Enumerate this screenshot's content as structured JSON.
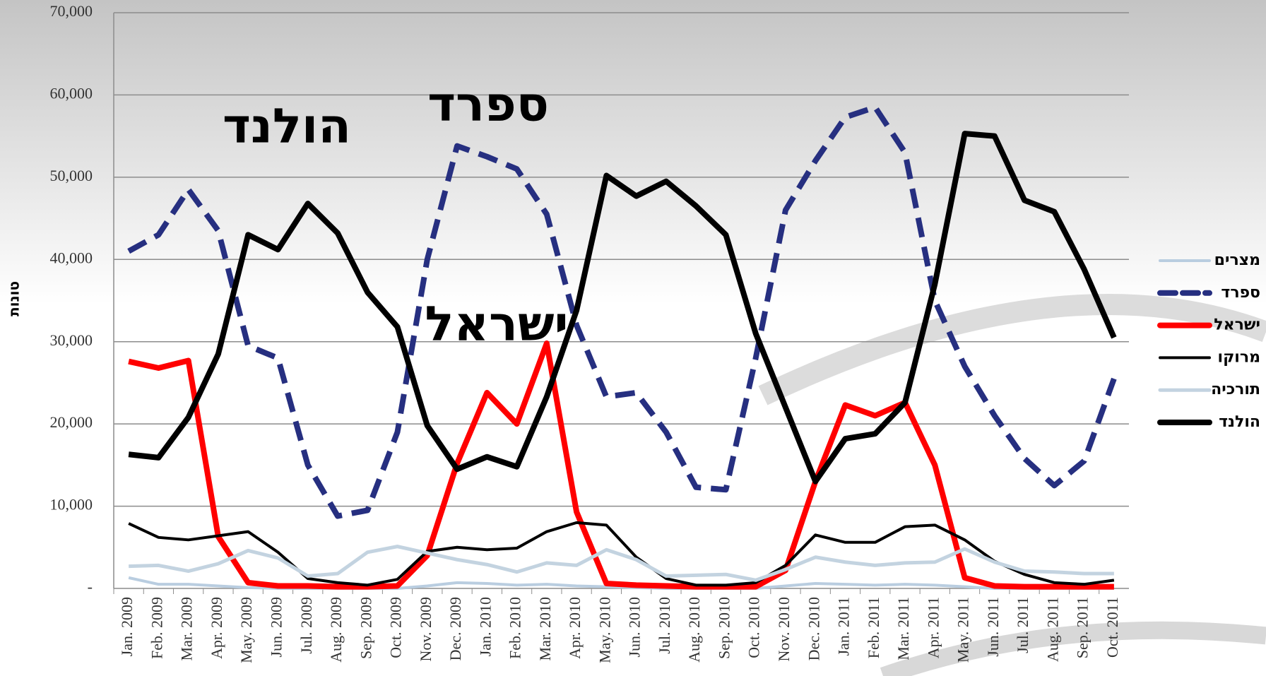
{
  "chart_data": {
    "type": "line",
    "y_label": "טונות",
    "annotations": [
      "הולנד",
      "ספרד",
      "ישראל"
    ],
    "categories": [
      "Jan. 2009",
      "Feb. 2009",
      "Mar. 2009",
      "Apr. 2009",
      "May. 2009",
      "Jun. 2009",
      "Jul. 2009",
      "Aug. 2009",
      "Sep. 2009",
      "Oct. 2009",
      "Nov. 2009",
      "Dec. 2009",
      "Jan. 2010",
      "Feb. 2010",
      "Mar. 2010",
      "Apr. 2010",
      "May. 2010",
      "Jun. 2010",
      "Jul. 2010",
      "Aug. 2010",
      "Sep. 2010",
      "Oct. 2010",
      "Nov. 2010",
      "Dec. 2010",
      "Jan. 2011",
      "Feb. 2011",
      "Mar. 2011",
      "Apr. 2011",
      "May. 2011",
      "Jun. 2011",
      "Jul. 2011",
      "Aug. 2011",
      "Sep. 2011",
      "Oct. 2011"
    ],
    "series": [
      {
        "name": "מצרים",
        "color": "#b9cde0",
        "linewidth": 4,
        "dashed": false,
        "values": [
          1300,
          500,
          500,
          300,
          100,
          0,
          0,
          0,
          0,
          0,
          300,
          700,
          600,
          400,
          500,
          300,
          200,
          100,
          0,
          0,
          0,
          0,
          300,
          600,
          500,
          400,
          500,
          400,
          200,
          0,
          0,
          0,
          0,
          0
        ]
      },
      {
        "name": "ספרד",
        "color": "#262f80",
        "linewidth": 8,
        "dashed": true,
        "values": [
          41000,
          43000,
          48500,
          43500,
          29500,
          28000,
          15000,
          8800,
          9500,
          19000,
          40000,
          53800,
          52500,
          51000,
          45500,
          32000,
          23300,
          23800,
          19000,
          12300,
          12000,
          28000,
          46000,
          52000,
          57300,
          58500,
          53000,
          35000,
          27000,
          21000,
          15800,
          12500,
          15500,
          25500
        ]
      },
      {
        "name": "ישראל",
        "color": "#ff0000",
        "linewidth": 8,
        "dashed": false,
        "values": [
          27600,
          26800,
          27700,
          6300,
          700,
          300,
          300,
          200,
          200,
          300,
          4000,
          15200,
          23800,
          20000,
          29800,
          9300,
          600,
          400,
          300,
          200,
          200,
          200,
          2200,
          13000,
          22300,
          21000,
          22600,
          15000,
          1300,
          300,
          200,
          200,
          200,
          200
        ]
      },
      {
        "name": "מרוקו",
        "color": "#000000",
        "linewidth": 4,
        "dashed": false,
        "values": [
          7900,
          6200,
          5900,
          6400,
          6900,
          4400,
          1200,
          700,
          400,
          1100,
          4500,
          5000,
          4700,
          4900,
          6900,
          8000,
          7700,
          3800,
          1200,
          400,
          400,
          700,
          2800,
          6500,
          5600,
          5600,
          7500,
          7700,
          5900,
          3300,
          1700,
          700,
          500,
          1000
        ]
      },
      {
        "name": "תורכיה",
        "color": "#c3d3e0",
        "linewidth": 5,
        "dashed": false,
        "values": [
          2700,
          2800,
          2100,
          3000,
          4600,
          3700,
          1500,
          1800,
          4400,
          5100,
          4300,
          3500,
          2900,
          2000,
          3100,
          2800,
          4700,
          3500,
          1500,
          1600,
          1700,
          1000,
          2300,
          3800,
          3200,
          2800,
          3100,
          3200,
          4800,
          3200,
          2100,
          2000,
          1800,
          1800
        ]
      },
      {
        "name": "הולנד",
        "color": "#000000",
        "linewidth": 8,
        "dashed": false,
        "values": [
          16300,
          15900,
          20800,
          28500,
          43000,
          41200,
          46800,
          43200,
          36000,
          31800,
          19800,
          14500,
          16000,
          14800,
          23300,
          33800,
          50200,
          47700,
          49500,
          46500,
          43000,
          31000,
          22000,
          13000,
          18200,
          18800,
          22600,
          37000,
          55300,
          55000,
          47200,
          45800,
          38800,
          30500
        ]
      }
    ],
    "ylim": [
      0,
      70000
    ],
    "yticks": [
      {
        "value": 0,
        "label": "-"
      },
      {
        "value": 10000,
        "label": "10,000"
      },
      {
        "value": 20000,
        "label": "20,000"
      },
      {
        "value": 30000,
        "label": "30,000"
      },
      {
        "value": 40000,
        "label": "40,000"
      },
      {
        "value": 50000,
        "label": "50,000"
      },
      {
        "value": 60000,
        "label": "60,000"
      },
      {
        "value": 70000,
        "label": "70,000"
      }
    ],
    "grid": true,
    "legend": "right"
  }
}
